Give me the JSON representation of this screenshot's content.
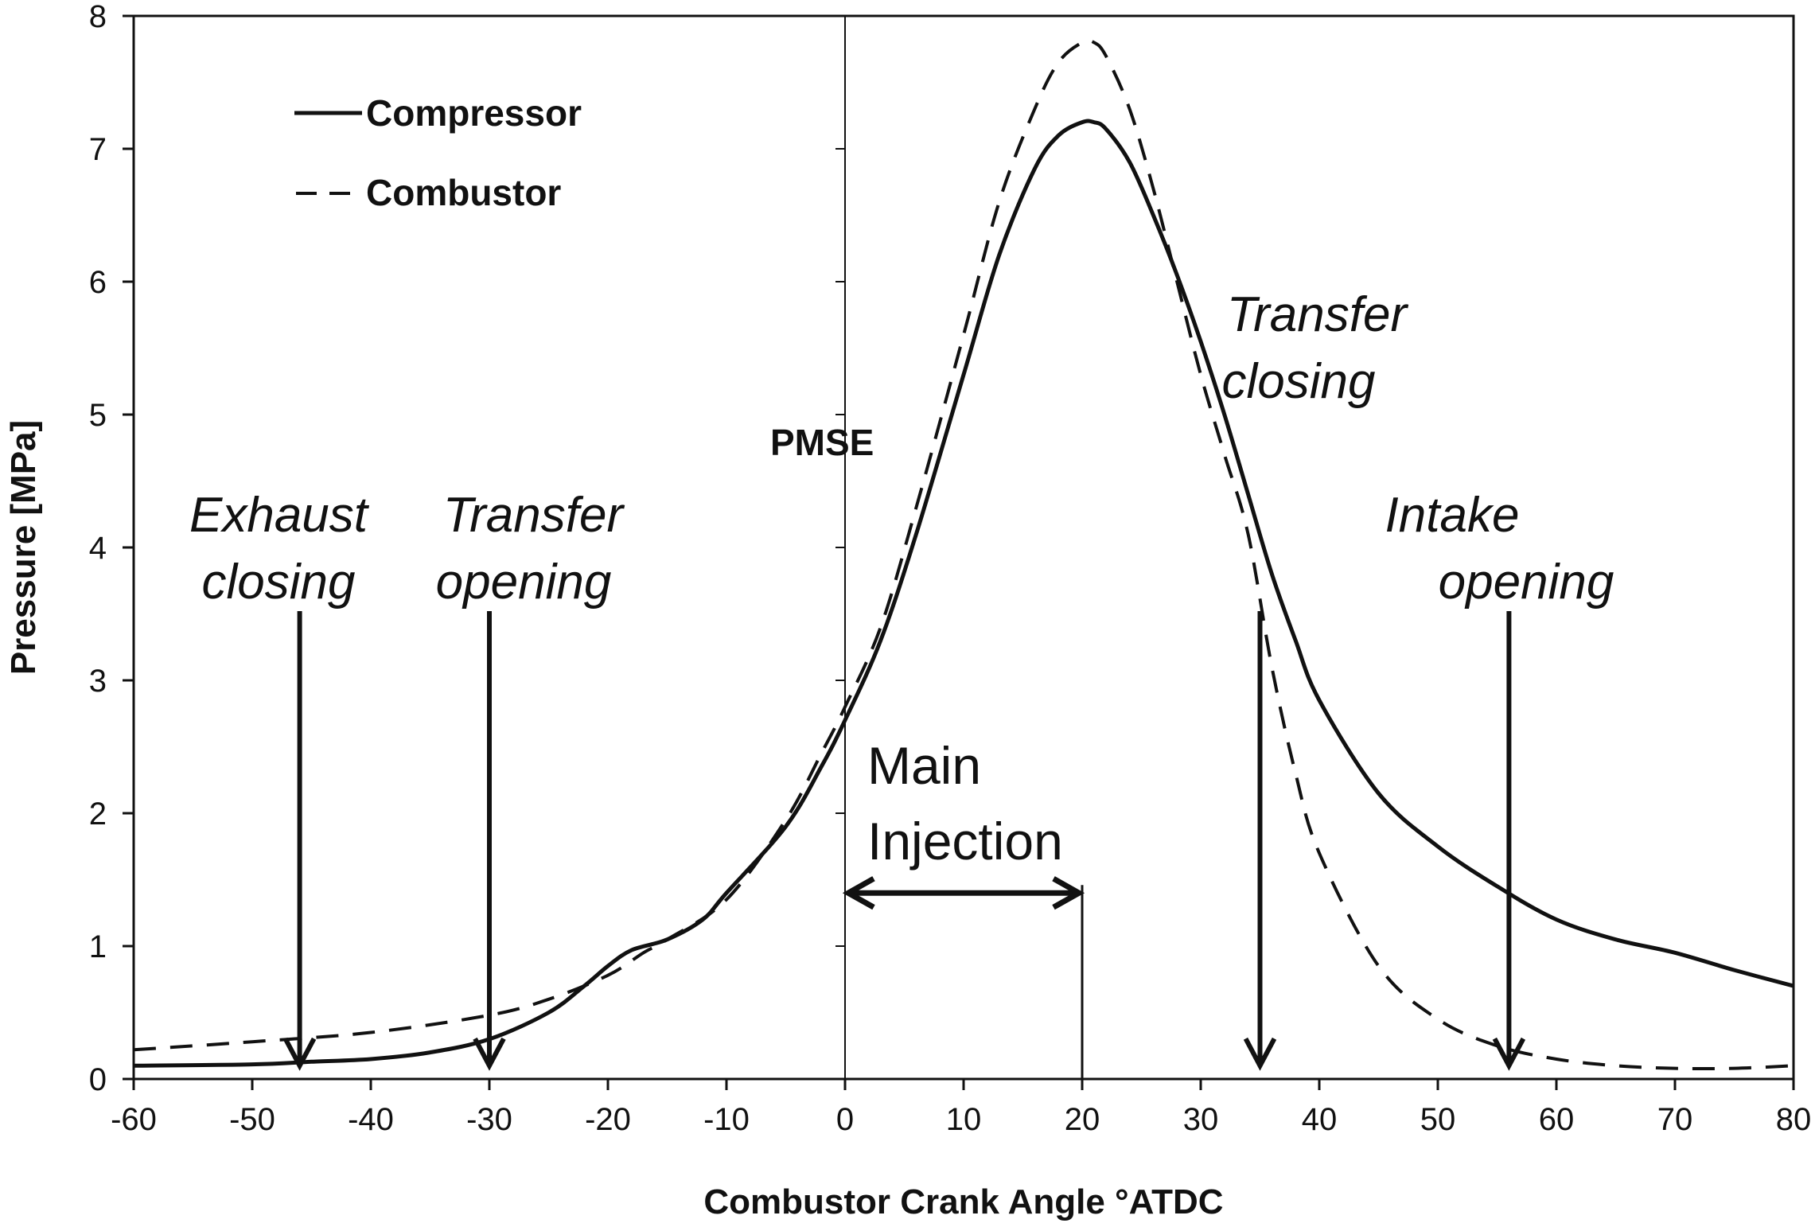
{
  "chart_data": {
    "type": "line",
    "xlabel": "Combustor Crank Angle °ATDC",
    "ylabel": "Pressure [MPa]",
    "xlim": [
      -60,
      80
    ],
    "ylim": [
      0,
      8
    ],
    "xticks": [
      -60,
      -50,
      -40,
      -30,
      -20,
      -10,
      0,
      10,
      20,
      30,
      40,
      50,
      60,
      70,
      80
    ],
    "yticks": [
      0,
      1,
      2,
      3,
      4,
      5,
      6,
      7,
      8
    ],
    "grid": false,
    "legend_position": "top-left",
    "series": [
      {
        "name": "Compressor",
        "style": "solid",
        "x": [
          -60,
          -50,
          -45,
          -40,
          -35,
          -30,
          -25,
          -22,
          -20,
          -18,
          -15,
          -12,
          -10,
          -5,
          -2,
          0,
          3,
          6,
          10,
          13,
          16,
          18,
          20,
          21,
          22,
          24,
          26,
          28,
          30,
          32,
          34,
          36,
          38,
          40,
          45,
          50,
          55,
          60,
          65,
          70,
          75,
          80
        ],
        "y": [
          0.1,
          0.11,
          0.13,
          0.15,
          0.2,
          0.3,
          0.5,
          0.7,
          0.85,
          0.97,
          1.05,
          1.2,
          1.4,
          1.9,
          2.35,
          2.7,
          3.3,
          4.1,
          5.3,
          6.2,
          6.85,
          7.1,
          7.2,
          7.2,
          7.15,
          6.9,
          6.5,
          6.05,
          5.55,
          5.0,
          4.4,
          3.8,
          3.3,
          2.85,
          2.15,
          1.75,
          1.45,
          1.2,
          1.05,
          0.95,
          0.82,
          0.7
        ]
      },
      {
        "name": "Combustor",
        "style": "dashed",
        "x": [
          -60,
          -50,
          -40,
          -30,
          -25,
          -20,
          -17,
          -15,
          -10,
          -5,
          -2,
          0,
          3,
          6,
          10,
          13,
          16,
          18,
          20,
          21,
          22,
          24,
          26,
          28,
          30,
          32,
          34,
          36,
          38,
          40,
          45,
          50,
          55,
          60,
          65,
          70,
          75,
          80
        ],
        "y": [
          0.22,
          0.28,
          0.35,
          0.48,
          0.6,
          0.78,
          0.95,
          1.05,
          1.35,
          1.95,
          2.45,
          2.8,
          3.4,
          4.3,
          5.6,
          6.6,
          7.3,
          7.65,
          7.8,
          7.8,
          7.7,
          7.3,
          6.7,
          6.0,
          5.3,
          4.7,
          4.1,
          3.1,
          2.3,
          1.7,
          0.85,
          0.45,
          0.25,
          0.15,
          0.1,
          0.08,
          0.08,
          0.1
        ]
      }
    ],
    "vline_x": 0,
    "legend_entries": [
      "Compressor",
      "Combustor"
    ],
    "annotations": [
      {
        "id": "exhaust-closing",
        "lines": [
          "Exhaust",
          "closing"
        ],
        "x": -46,
        "arrow_to_y": 0.1
      },
      {
        "id": "transfer-opening",
        "lines": [
          "Transfer",
          "opening"
        ],
        "x": -30,
        "arrow_to_y": 0.1
      },
      {
        "id": "transfer-closing",
        "lines": [
          "Transfer",
          "closing"
        ],
        "x": 35,
        "arrow_to_y": 0.1
      },
      {
        "id": "intake-opening",
        "lines": [
          "Intake",
          "opening"
        ],
        "x": 56,
        "arrow_to_y": 0.1
      }
    ],
    "pmse_label": "PMSE",
    "main_injection": {
      "lines": [
        "Main",
        "Injection"
      ],
      "x_start": 0,
      "x_end": 20,
      "y": 1.4
    }
  }
}
